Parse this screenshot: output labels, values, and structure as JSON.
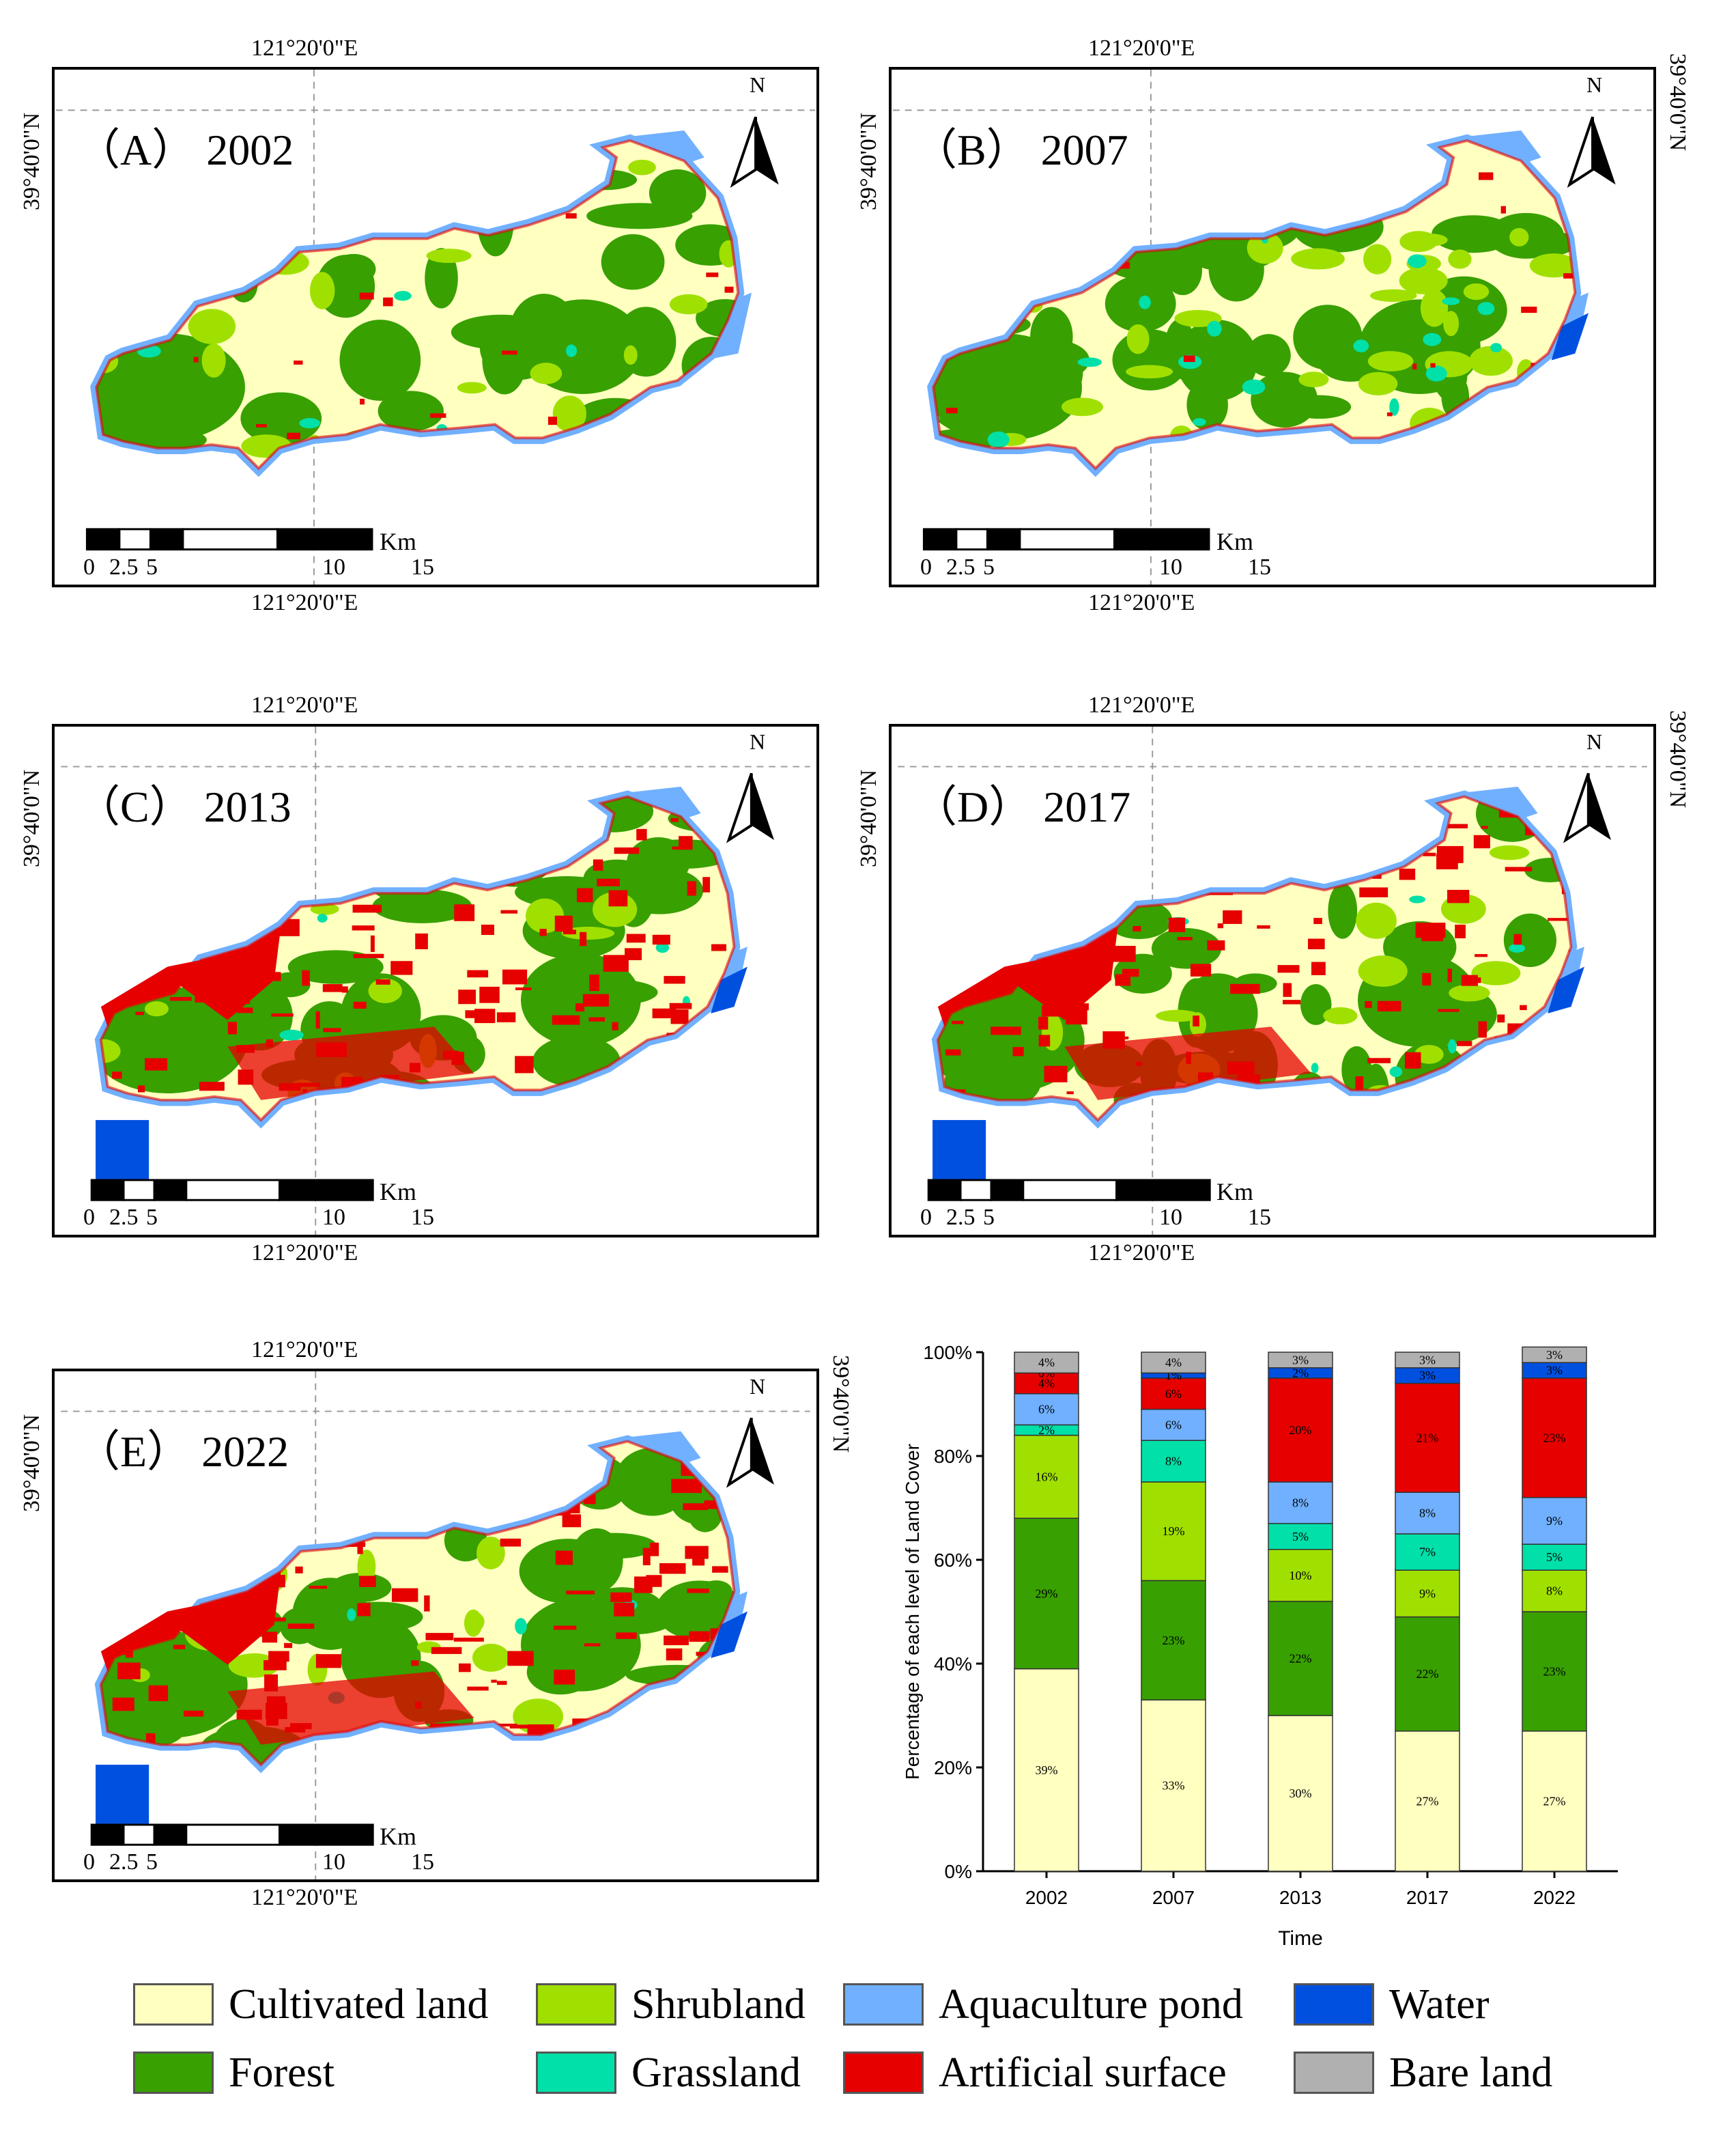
{
  "colors": {
    "cultivated": "#ffffc0",
    "shrubland": "#a0e000",
    "aquaculture": "#70b0ff",
    "water": "#0050e0",
    "forest": "#38a000",
    "grassland": "#00e0a8",
    "artificial": "#e60000",
    "bare": "#b0b0b0"
  },
  "coords": {
    "lon": "121°20'0\"E",
    "lat": "39°40'0\"N"
  },
  "scalebar": {
    "unit": "Km",
    "ticks": [
      "0",
      "2.5",
      "5",
      "10",
      "15"
    ]
  },
  "north_label": "N",
  "panels": [
    {
      "id": "A",
      "title": "（A） 2002",
      "year": "2002"
    },
    {
      "id": "B",
      "title": "（B） 2007",
      "year": "2007"
    },
    {
      "id": "C",
      "title": "（C） 2013",
      "year": "2013"
    },
    {
      "id": "D",
      "title": "（D） 2017",
      "year": "2017"
    },
    {
      "id": "E",
      "title": "（E） 2022",
      "year": "2022"
    }
  ],
  "legend": [
    {
      "key": "cultivated",
      "label": "Cultivated land"
    },
    {
      "key": "shrubland",
      "label": "Shrubland"
    },
    {
      "key": "aquaculture",
      "label": "Aquaculture pond"
    },
    {
      "key": "water",
      "label": "Water"
    },
    {
      "key": "forest",
      "label": "Forest"
    },
    {
      "key": "grassland",
      "label": "Grassland"
    },
    {
      "key": "artificial",
      "label": "Artificial surface"
    },
    {
      "key": "bare",
      "label": "Bare land"
    }
  ],
  "chart_data": {
    "type": "bar",
    "stacked": true,
    "xlabel": "Time",
    "ylabel": "Percentage of each level of Land Cover",
    "ylim": [
      0,
      100
    ],
    "yticks": [
      "0%",
      "20%",
      "40%",
      "60%",
      "80%",
      "100%"
    ],
    "categories": [
      "2002",
      "2007",
      "2013",
      "2017",
      "2022"
    ],
    "series": [
      {
        "key": "cultivated",
        "values": [
          39,
          33,
          30,
          27,
          27
        ],
        "labels": [
          "39%",
          "33%",
          "30%",
          "27%",
          "27%"
        ]
      },
      {
        "key": "forest",
        "values": [
          29,
          23,
          22,
          22,
          23
        ],
        "labels": [
          "29%",
          "23%",
          "22%",
          "22%",
          "23%"
        ]
      },
      {
        "key": "shrubland",
        "values": [
          16,
          19,
          10,
          9,
          8
        ],
        "labels": [
          "16%",
          "19%",
          "10%",
          "9%",
          "8%"
        ]
      },
      {
        "key": "grassland",
        "values": [
          2,
          8,
          5,
          7,
          5
        ],
        "labels": [
          "2%",
          "8%",
          "5%",
          "7%",
          "5%"
        ]
      },
      {
        "key": "aquaculture",
        "values": [
          6,
          6,
          8,
          8,
          9
        ],
        "labels": [
          "6%",
          "6%",
          "8%",
          "8%",
          "9%"
        ]
      },
      {
        "key": "artificial",
        "values": [
          4,
          6,
          20,
          21,
          23
        ],
        "labels": [
          "4%",
          "6%",
          "20%",
          "21%",
          "23%"
        ]
      },
      {
        "key": "water",
        "values": [
          0,
          1,
          2,
          3,
          3
        ],
        "labels": [
          "0%",
          "1%",
          "2%",
          "3%",
          "3%"
        ]
      },
      {
        "key": "bare",
        "values": [
          4,
          4,
          3,
          3,
          3
        ],
        "labels": [
          "4%",
          "4%",
          "3%",
          "3%",
          "3%"
        ]
      }
    ]
  }
}
